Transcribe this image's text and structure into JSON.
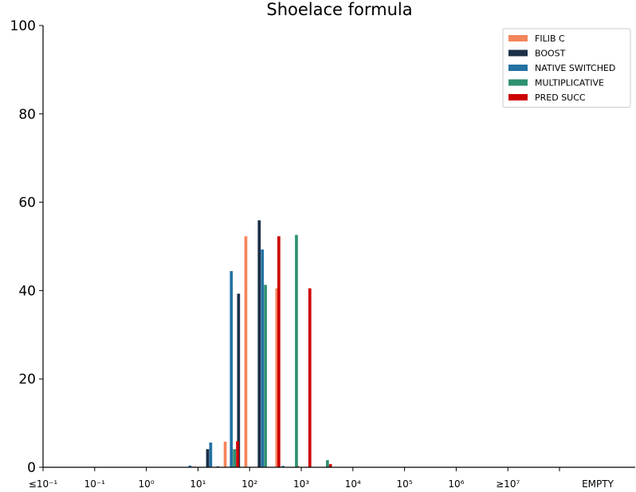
{
  "chart_data": {
    "type": "bar",
    "title": "Shoelace formula",
    "xlabel": "",
    "ylabel": "",
    "ylim": [
      0,
      100
    ],
    "yticks": [
      "0",
      "20",
      "40",
      "60",
      "80",
      "100"
    ],
    "categories": [
      "≤10⁻¹",
      "10⁻¹",
      "10⁰",
      "10¹",
      "10²",
      "10³",
      "10⁴",
      "10⁵",
      "10⁶",
      "≥10⁷",
      "EMPTY"
    ],
    "bins_per_decade": 5,
    "legend_position": "top-right",
    "grid": false,
    "series": [
      {
        "name": "FILIB C",
        "color": "#f4845a",
        "bars": [
          {
            "x": 2.0,
            "y": 0.2
          },
          {
            "x": 2.6,
            "y": 5.8
          },
          {
            "x": 3.0,
            "y": 52.3
          },
          {
            "x": 3.6,
            "y": 40.5
          },
          {
            "x": 4.0,
            "y": 0.4
          }
        ]
      },
      {
        "name": "BOOST",
        "color": "#1b2f47",
        "bars": [
          {
            "x": 2.2,
            "y": 4.1
          },
          {
            "x": 2.8,
            "y": 39.3
          },
          {
            "x": 3.2,
            "y": 55.9
          },
          {
            "x": 2.4,
            "y": 0.2
          }
        ]
      },
      {
        "name": "NATIVE SWITCHED",
        "color": "#2471a3",
        "bars": [
          {
            "x": 1.8,
            "y": 0.4
          },
          {
            "x": 2.2,
            "y": 5.6
          },
          {
            "x": 2.6,
            "y": 44.4
          },
          {
            "x": 3.2,
            "y": 49.3
          },
          {
            "x": 3.6,
            "y": 0.3
          }
        ]
      },
      {
        "name": "MULTIPLICATIVE",
        "color": "#2e9170",
        "bars": [
          {
            "x": 2.6,
            "y": 4.1
          },
          {
            "x": 3.2,
            "y": 41.3
          },
          {
            "x": 3.8,
            "y": 52.6
          },
          {
            "x": 4.4,
            "y": 1.6
          }
        ]
      },
      {
        "name": "PRED SUCC",
        "color": "#cc0000",
        "bars": [
          {
            "x": 2.6,
            "y": 5.9
          },
          {
            "x": 3.4,
            "y": 52.3
          },
          {
            "x": 4.0,
            "y": 40.5
          },
          {
            "x": 4.4,
            "y": 0.7
          }
        ]
      }
    ]
  }
}
